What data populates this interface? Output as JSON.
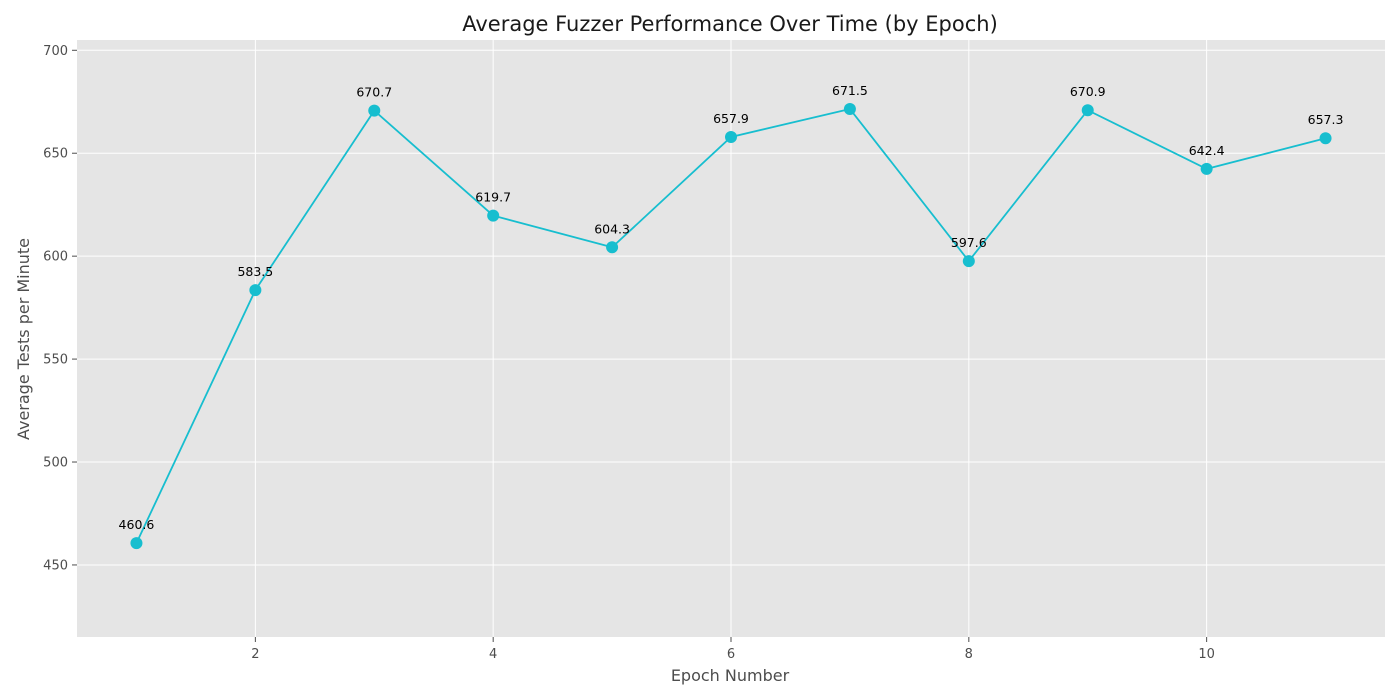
{
  "chart_data": {
    "type": "line",
    "title": "Average Fuzzer Performance Over Time (by Epoch)",
    "xlabel": "Epoch Number",
    "ylabel": "Average Tests per Minute",
    "xlim": [
      0.5,
      11.5
    ],
    "ylim": [
      415,
      705
    ],
    "xticks": [
      2,
      4,
      6,
      8,
      10
    ],
    "yticks": [
      450,
      500,
      550,
      600,
      650,
      700
    ],
    "grid": true,
    "series": [
      {
        "x": [
          1,
          2,
          3,
          4,
          5,
          6,
          7,
          8,
          9,
          10,
          11
        ],
        "y": [
          460.6,
          583.5,
          670.7,
          619.7,
          604.3,
          657.9,
          671.5,
          597.6,
          670.9,
          642.4,
          657.3
        ],
        "labels": [
          "460.6",
          "583.5",
          "670.7",
          "619.7",
          "604.3",
          "657.9",
          "671.5",
          "597.6",
          "670.9",
          "642.4",
          "657.3"
        ],
        "color": "#17becf",
        "marker": "circle"
      }
    ],
    "background_color": "#e5e5e5"
  }
}
